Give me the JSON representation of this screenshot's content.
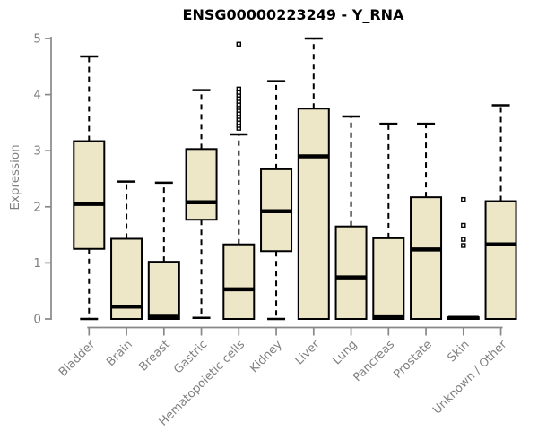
{
  "chart_data": {
    "type": "boxplot",
    "title": "ENSG00000223249 - Y_RNA",
    "ylabel": "Expression",
    "xlabel": "",
    "ylim": [
      0,
      5
    ],
    "y_ticks": [
      0,
      1,
      2,
      3,
      4,
      5
    ],
    "grid": "off",
    "legend": "none",
    "categories": [
      "Bladder",
      "Brain",
      "Breast",
      "Gastric",
      "Hematopoietic cells",
      "Kidney",
      "Liver",
      "Lung",
      "Pancreas",
      "Prostate",
      "Skin",
      "Unknown / Other"
    ],
    "series": [
      {
        "name": "Bladder",
        "low": 0,
        "q1": 1.25,
        "median": 2.05,
        "q3": 3.17,
        "high": 4.68,
        "outliers": []
      },
      {
        "name": "Brain",
        "low": 0,
        "q1": 0,
        "median": 0.22,
        "q3": 1.43,
        "high": 2.45,
        "outliers": []
      },
      {
        "name": "Breast",
        "low": 0,
        "q1": 0,
        "median": 0.04,
        "q3": 1.02,
        "high": 2.43,
        "outliers": []
      },
      {
        "name": "Gastric",
        "low": 0.02,
        "q1": 1.77,
        "median": 2.08,
        "q3": 3.03,
        "high": 4.08,
        "outliers": []
      },
      {
        "name": "Hematopoietic cells",
        "low": 0,
        "q1": 0,
        "median": 0.53,
        "q3": 1.33,
        "high": 3.29,
        "outliers": [
          3.4,
          3.45,
          3.5,
          3.56,
          3.61,
          3.66,
          3.72,
          3.77,
          3.82,
          3.88,
          3.93,
          3.99,
          4.04,
          4.1,
          4.9
        ]
      },
      {
        "name": "Kidney",
        "low": 0,
        "q1": 1.21,
        "median": 1.92,
        "q3": 2.67,
        "high": 4.24,
        "outliers": []
      },
      {
        "name": "Liver",
        "low": 0,
        "q1": 0,
        "median": 2.9,
        "q3": 3.75,
        "high": 5.0,
        "outliers": []
      },
      {
        "name": "Lung",
        "low": 0,
        "q1": 0,
        "median": 0.74,
        "q3": 1.65,
        "high": 3.61,
        "outliers": []
      },
      {
        "name": "Pancreas",
        "low": 0,
        "q1": 0,
        "median": 0.03,
        "q3": 1.44,
        "high": 3.48,
        "outliers": []
      },
      {
        "name": "Prostate",
        "low": 0,
        "q1": 0,
        "median": 1.24,
        "q3": 2.17,
        "high": 3.48,
        "outliers": []
      },
      {
        "name": "Skin",
        "low": 0,
        "q1": 0,
        "median": 0.02,
        "q3": 0.03,
        "high": 0.03,
        "outliers": [
          1.31,
          1.42,
          1.67,
          2.13
        ]
      },
      {
        "name": "Unknown / Other",
        "low": 0,
        "q1": 0,
        "median": 1.33,
        "q3": 2.1,
        "high": 3.81,
        "outliers": []
      }
    ],
    "colors": {
      "box_fill": "#EDE7C8",
      "box_stroke": "#000000",
      "median": "#000000",
      "whisker": "#000000",
      "axis": "#888888",
      "tick_text": "#808080",
      "title_text": "#000000",
      "outlier_fill": "#FFFFFF",
      "outlier_stroke": "#000000",
      "background": "#FFFFFF"
    }
  }
}
